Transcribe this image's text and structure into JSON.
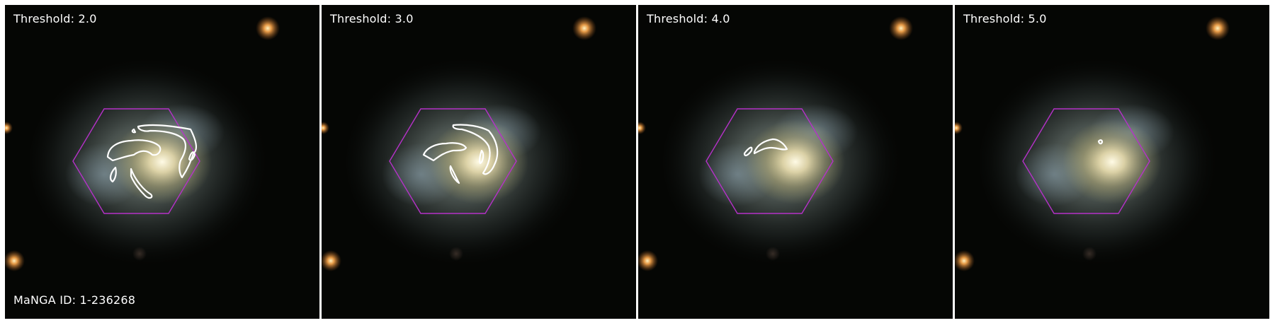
{
  "figure": {
    "panels": [
      {
        "threshold_label": "Threshold: 2.0"
      },
      {
        "threshold_label": "Threshold: 3.0"
      },
      {
        "threshold_label": "Threshold: 4.0"
      },
      {
        "threshold_label": "Threshold: 5.0"
      }
    ],
    "galaxy_id_label": "MaNGA ID: 1-236268",
    "colors": {
      "hexagon": "#b531c8",
      "contours": "#ffffff",
      "background": "#050604"
    }
  }
}
